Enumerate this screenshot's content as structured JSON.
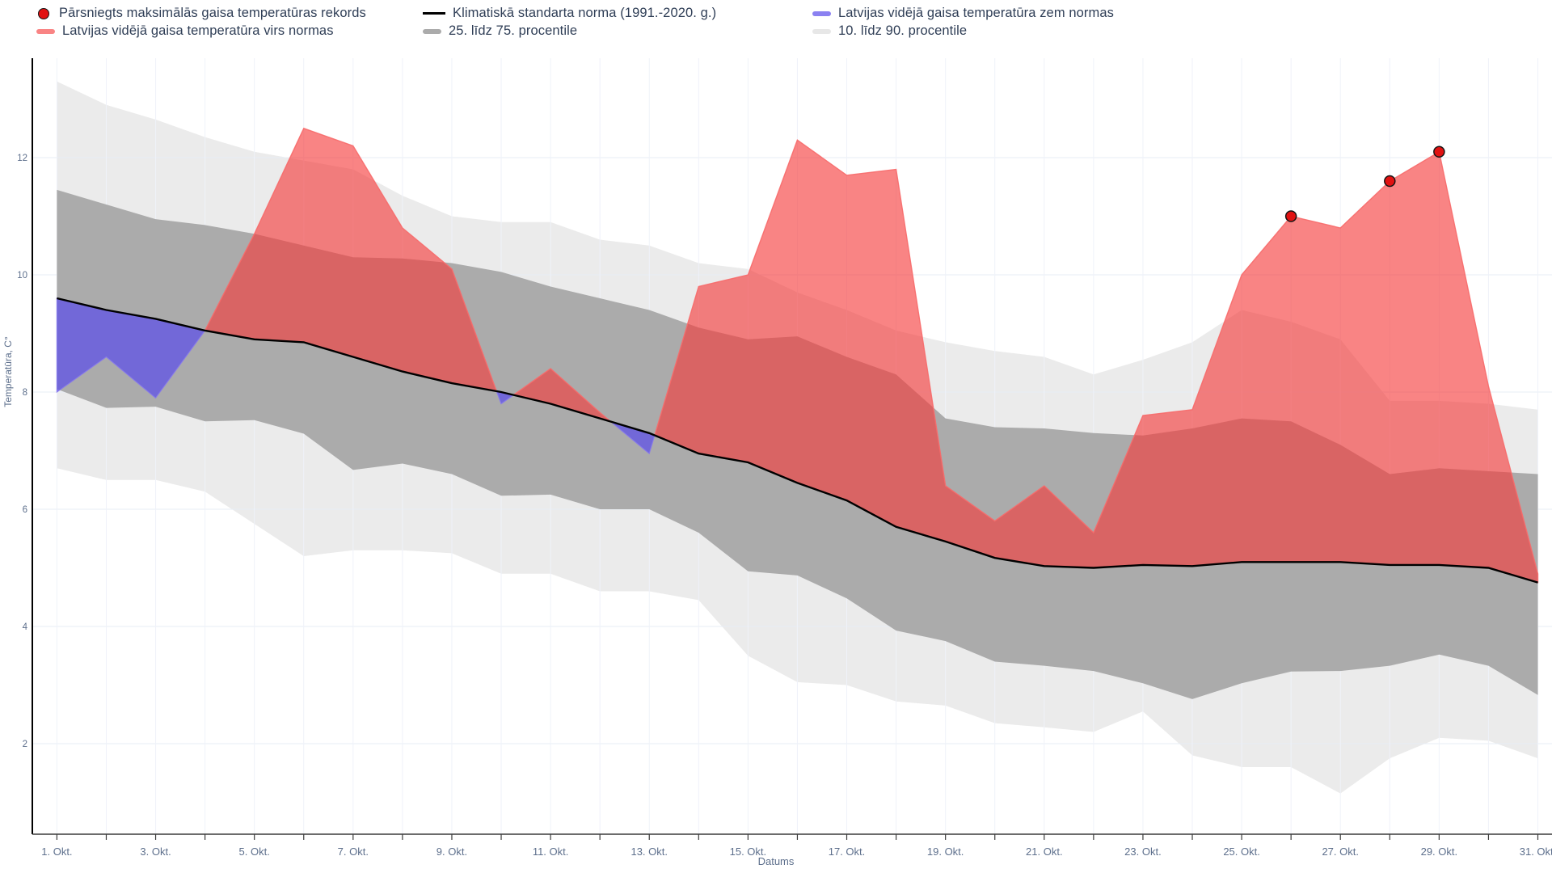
{
  "legend": {
    "items": [
      {
        "id": "record-dot",
        "type": "dot",
        "label": "Pārsniegts maksimālās gaisa temperatūras rekords"
      },
      {
        "id": "climate-norm",
        "type": "line-black",
        "label": "Klimatiskā standarta norma (1991.-2020. g.)"
      },
      {
        "id": "below-norm",
        "type": "bar-purple",
        "label": "Latvijas vidējā gaisa temperatūra zem normas"
      },
      {
        "id": "above-norm",
        "type": "bar-red",
        "label": "Latvijas vidējā gaisa temperatūra virs normas"
      },
      {
        "id": "pct-25-75",
        "type": "bar-gray",
        "label": "25. līdz 75. procentile"
      },
      {
        "id": "pct-10-90",
        "type": "bar-lightgray",
        "label": "10. līdz 90. procentile"
      }
    ]
  },
  "chart_data": {
    "type": "area",
    "xlabel": "Datums",
    "ylabel": "Temperatūra, C°",
    "ylim": [
      0.5,
      13.7
    ],
    "y_ticks": [
      2,
      4,
      6,
      8,
      10,
      12
    ],
    "days": [
      1,
      2,
      3,
      4,
      5,
      6,
      7,
      8,
      9,
      10,
      11,
      12,
      13,
      14,
      15,
      16,
      17,
      18,
      19,
      20,
      21,
      22,
      23,
      24,
      25,
      26,
      27,
      28,
      29,
      30,
      31
    ],
    "x_tick_labels": [
      "1. Okt.",
      "",
      "3. Okt.",
      "",
      "5. Okt.",
      "",
      "7. Okt.",
      "",
      "9. Okt.",
      "",
      "11. Okt.",
      "",
      "13. Okt.",
      "",
      "15. Okt.",
      "",
      "17. Okt.",
      "",
      "19. Okt.",
      "",
      "21. Okt.",
      "",
      "23. Okt.",
      "",
      "25. Okt.",
      "",
      "27. Okt.",
      "",
      "29. Okt.",
      "",
      "31. Okt."
    ],
    "series": [
      {
        "name": "Klimatiskā standarta norma (1991.-2020. g.)",
        "values": [
          9.6,
          9.4,
          9.25,
          9.05,
          8.9,
          8.85,
          8.6,
          8.35,
          8.15,
          8.0,
          7.8,
          7.55,
          7.3,
          6.95,
          6.8,
          6.45,
          6.15,
          5.7,
          5.45,
          5.17,
          5.03,
          5.0,
          5.05,
          5.03,
          5.1,
          5.1,
          5.1,
          5.05,
          5.05,
          5.0,
          4.75
        ]
      },
      {
        "name": "Latvijas vidējā gaisa temperatūra",
        "values": [
          8.0,
          8.6,
          7.9,
          9.05,
          10.7,
          12.5,
          12.2,
          10.8,
          10.1,
          7.8,
          8.4,
          7.65,
          6.95,
          9.8,
          10.0,
          12.3,
          11.7,
          11.8,
          6.4,
          5.8,
          6.4,
          5.6,
          7.6,
          7.7,
          10.0,
          11.0,
          10.8,
          11.6,
          12.1,
          8.1,
          4.9
        ]
      },
      {
        "name": "10. procentile",
        "values": [
          6.7,
          6.5,
          6.5,
          6.3,
          5.75,
          5.2,
          5.3,
          5.3,
          5.25,
          4.9,
          4.9,
          4.6,
          4.6,
          4.45,
          3.5,
          3.05,
          3.0,
          2.72,
          2.65,
          2.35,
          2.28,
          2.2,
          2.55,
          1.8,
          1.6,
          1.6,
          1.15,
          1.75,
          2.1,
          2.05,
          1.75
        ]
      },
      {
        "name": "25. procentile",
        "values": [
          8.05,
          7.73,
          7.75,
          7.5,
          7.52,
          7.29,
          6.67,
          6.78,
          6.6,
          6.23,
          6.25,
          6.0,
          6.0,
          5.6,
          4.94,
          4.87,
          4.48,
          3.93,
          3.75,
          3.4,
          3.33,
          3.24,
          3.03,
          2.76,
          3.03,
          3.23,
          3.24,
          3.33,
          3.52,
          3.33,
          2.83
        ]
      },
      {
        "name": "75. procentile",
        "values": [
          11.45,
          11.2,
          10.95,
          10.85,
          10.7,
          10.5,
          10.3,
          10.28,
          10.2,
          10.05,
          9.8,
          9.6,
          9.4,
          9.1,
          8.9,
          8.95,
          8.6,
          8.3,
          7.55,
          7.4,
          7.38,
          7.3,
          7.26,
          7.38,
          7.55,
          7.5,
          7.1,
          6.6,
          6.7,
          6.65,
          6.6
        ]
      },
      {
        "name": "90. procentile",
        "values": [
          13.3,
          12.9,
          12.65,
          12.35,
          12.1,
          11.95,
          11.8,
          11.35,
          11.0,
          10.9,
          10.9,
          10.6,
          10.5,
          10.2,
          10.1,
          9.7,
          9.4,
          9.05,
          8.85,
          8.7,
          8.6,
          8.3,
          8.55,
          8.85,
          9.4,
          9.2,
          8.9,
          7.85,
          7.85,
          7.8,
          7.7
        ]
      }
    ],
    "records": [
      {
        "day": 26,
        "value": 11.0
      },
      {
        "day": 28,
        "value": 11.6
      },
      {
        "day": 29,
        "value": 12.1
      }
    ],
    "colors": {
      "red_fill": "rgba(246,56,56,0.62)",
      "red_edge": "rgba(247,106,106,0.9)",
      "purple_fill": "rgba(90,75,235,0.7)",
      "purple_edge": "rgba(134,120,236,0.9)",
      "band_light": "#EBEBEB",
      "band_dark": "#ABABAB",
      "norm_line": "#000000",
      "record_dot": "#E11212",
      "record_dot_edge": "#151515",
      "grid_h": "#E7EDF6",
      "grid_v": "#EFF2F9",
      "axis": "#3C3C3C",
      "tick_text": "#5D6F8C"
    }
  }
}
